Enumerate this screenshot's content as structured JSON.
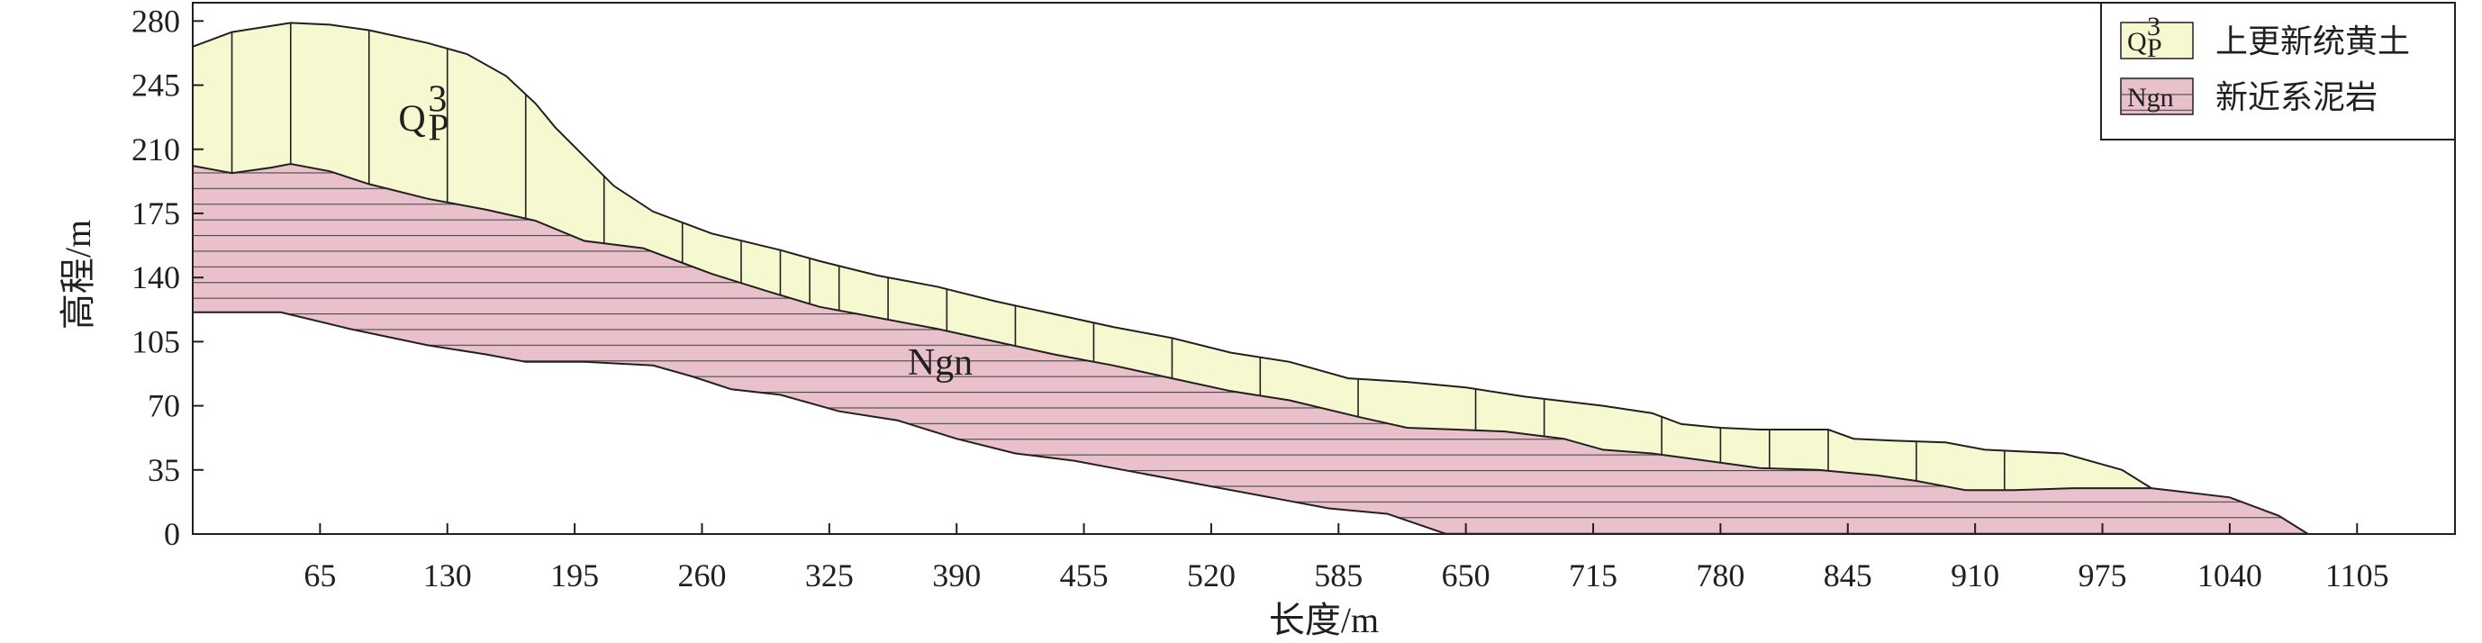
{
  "chart_data": {
    "type": "area",
    "xlabel": "长度/m",
    "ylabel": "高程/m",
    "xlim": [
      0,
      1155
    ],
    "ylim": [
      0,
      290
    ],
    "xticks": [
      65,
      130,
      195,
      260,
      325,
      390,
      455,
      520,
      585,
      650,
      715,
      780,
      845,
      910,
      975,
      1040,
      1105
    ],
    "yticks": [
      0,
      35,
      70,
      105,
      140,
      175,
      210,
      245,
      280
    ],
    "grid": false,
    "legend_position": "top-right",
    "legend": [
      {
        "code": "Q",
        "code_sub": "P",
        "code_sup": "3",
        "label": "上更新统黄土",
        "fill": "#f6f8cf"
      },
      {
        "code": "Ngn",
        "label": "新近系泥岩",
        "fill": "#e8c1cb"
      }
    ],
    "units": [
      {
        "name": "Qp3",
        "label": "Q",
        "sub": "P",
        "sup": "3",
        "anchor": [
          105,
          220
        ]
      },
      {
        "name": "Ngn",
        "label": "Ngn",
        "anchor": [
          365,
          87
        ]
      }
    ],
    "series": [
      {
        "name": "Q",
        "fill": "#f6f8cf",
        "top": [
          [
            0,
            266
          ],
          [
            20,
            274
          ],
          [
            50,
            279
          ],
          [
            70,
            278
          ],
          [
            90,
            275
          ],
          [
            120,
            268
          ],
          [
            140,
            262
          ],
          [
            160,
            250
          ],
          [
            175,
            235
          ],
          [
            185,
            222
          ],
          [
            200,
            206
          ],
          [
            215,
            190
          ],
          [
            235,
            176
          ],
          [
            265,
            164
          ],
          [
            300,
            155
          ],
          [
            320,
            149
          ],
          [
            350,
            141
          ],
          [
            380,
            135
          ],
          [
            410,
            127
          ],
          [
            440,
            120
          ],
          [
            470,
            113
          ],
          [
            500,
            107
          ],
          [
            530,
            99
          ],
          [
            560,
            94
          ],
          [
            590,
            85
          ],
          [
            620,
            83
          ],
          [
            650,
            80
          ],
          [
            680,
            75
          ],
          [
            720,
            70
          ],
          [
            745,
            66
          ],
          [
            760,
            60
          ],
          [
            780,
            58
          ],
          [
            800,
            57
          ],
          [
            835,
            57
          ],
          [
            848,
            52
          ],
          [
            868,
            51
          ],
          [
            895,
            50
          ],
          [
            915,
            46
          ],
          [
            955,
            44
          ],
          [
            985,
            35
          ],
          [
            1000,
            25
          ]
        ],
        "bottom": [
          [
            0,
            201
          ],
          [
            20,
            197
          ],
          [
            40,
            200
          ],
          [
            50,
            202
          ],
          [
            70,
            198
          ],
          [
            90,
            191
          ],
          [
            120,
            183
          ],
          [
            150,
            177
          ],
          [
            175,
            171
          ],
          [
            200,
            160
          ],
          [
            230,
            156
          ],
          [
            265,
            142
          ],
          [
            295,
            132
          ],
          [
            320,
            124
          ],
          [
            350,
            118
          ],
          [
            380,
            112
          ],
          [
            410,
            105
          ],
          [
            440,
            98
          ],
          [
            470,
            92
          ],
          [
            500,
            85
          ],
          [
            530,
            78
          ],
          [
            560,
            73
          ],
          [
            595,
            64
          ],
          [
            620,
            58
          ],
          [
            645,
            57
          ],
          [
            670,
            56
          ],
          [
            700,
            52
          ],
          [
            720,
            46
          ],
          [
            745,
            44
          ],
          [
            780,
            39
          ],
          [
            800,
            36
          ],
          [
            830,
            35
          ],
          [
            860,
            32
          ],
          [
            880,
            29
          ],
          [
            905,
            24
          ],
          [
            930,
            24
          ],
          [
            960,
            25
          ],
          [
            1000,
            25
          ]
        ]
      },
      {
        "name": "Ngn",
        "fill": "#e8c1cb",
        "top": [
          [
            0,
            201
          ],
          [
            20,
            197
          ],
          [
            40,
            200
          ],
          [
            50,
            202
          ],
          [
            70,
            198
          ],
          [
            90,
            191
          ],
          [
            120,
            183
          ],
          [
            150,
            177
          ],
          [
            175,
            171
          ],
          [
            200,
            160
          ],
          [
            230,
            156
          ],
          [
            265,
            142
          ],
          [
            295,
            132
          ],
          [
            320,
            124
          ],
          [
            350,
            118
          ],
          [
            380,
            112
          ],
          [
            410,
            105
          ],
          [
            440,
            98
          ],
          [
            470,
            92
          ],
          [
            500,
            85
          ],
          [
            530,
            78
          ],
          [
            560,
            73
          ],
          [
            595,
            64
          ],
          [
            620,
            58
          ],
          [
            645,
            57
          ],
          [
            670,
            56
          ],
          [
            700,
            52
          ],
          [
            720,
            46
          ],
          [
            745,
            44
          ],
          [
            780,
            39
          ],
          [
            800,
            36
          ],
          [
            830,
            35
          ],
          [
            860,
            32
          ],
          [
            880,
            29
          ],
          [
            905,
            24
          ],
          [
            930,
            24
          ],
          [
            960,
            25
          ],
          [
            1000,
            25
          ],
          [
            1040,
            20
          ],
          [
            1065,
            10
          ],
          [
            1080,
            0
          ]
        ],
        "bottom": [
          [
            0,
            121
          ],
          [
            45,
            121
          ],
          [
            80,
            112
          ],
          [
            120,
            103
          ],
          [
            150,
            98
          ],
          [
            170,
            94
          ],
          [
            200,
            94
          ],
          [
            235,
            92
          ],
          [
            255,
            86
          ],
          [
            275,
            79
          ],
          [
            300,
            76
          ],
          [
            330,
            67
          ],
          [
            360,
            62
          ],
          [
            390,
            52
          ],
          [
            420,
            44
          ],
          [
            450,
            40
          ],
          [
            480,
            34
          ],
          [
            520,
            26
          ],
          [
            555,
            19
          ],
          [
            580,
            14
          ],
          [
            610,
            11
          ],
          [
            640,
            0
          ]
        ]
      }
    ],
    "hatch": {
      "Q": "vertical",
      "Ngn": "horizontal"
    }
  }
}
